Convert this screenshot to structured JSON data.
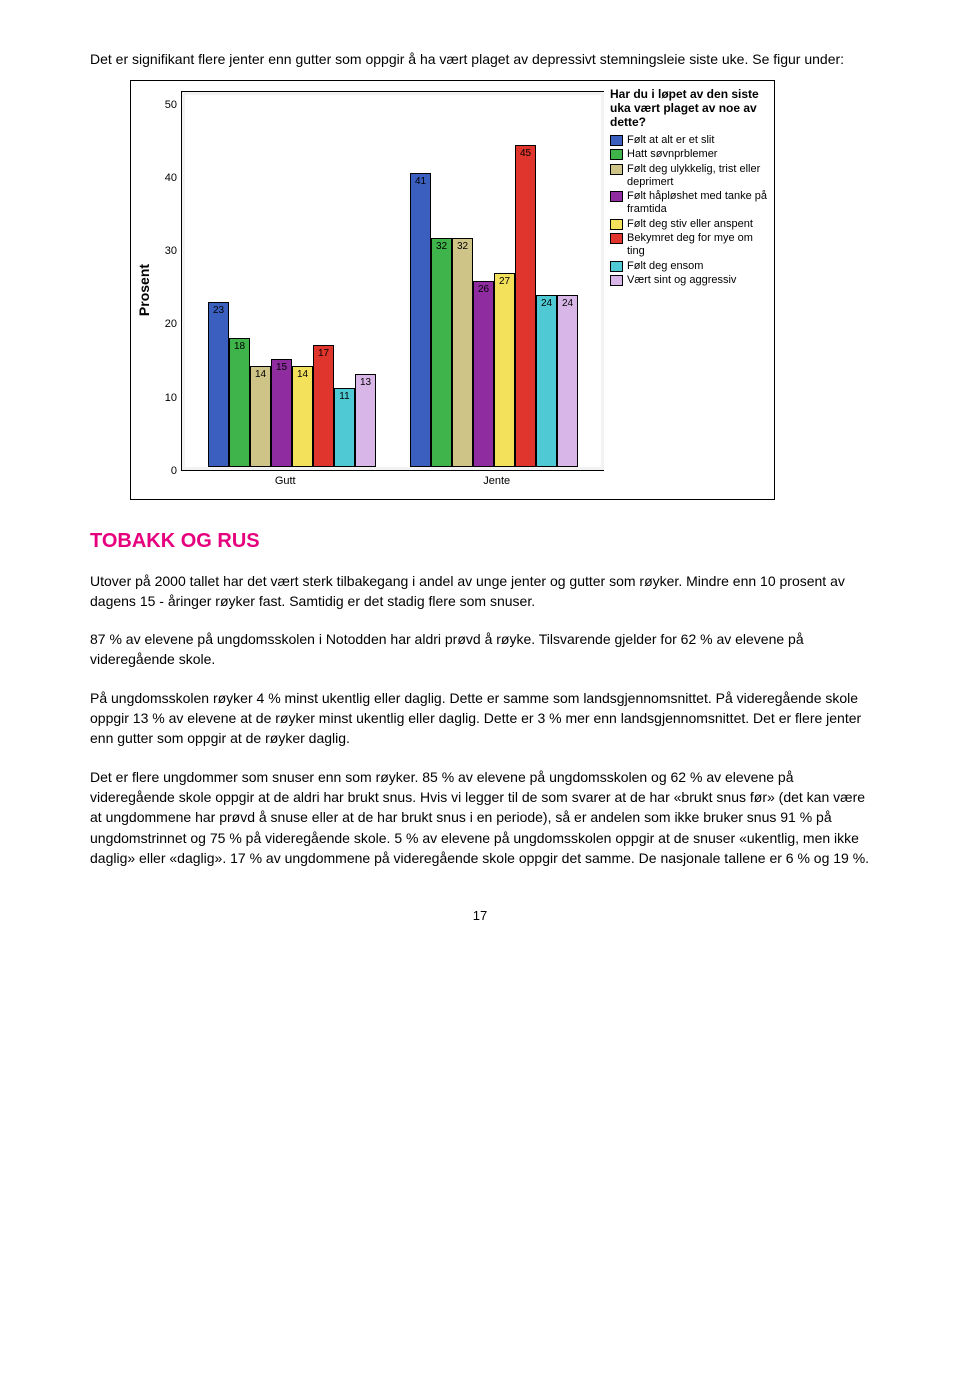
{
  "intro": "Det er signifikant flere jenter enn gutter som oppgir å ha vært plaget av depressivt stemningsleie siste uke. Se figur under:",
  "chart": {
    "type": "bar",
    "y_axis_title": "Prosent",
    "ylim": [
      0,
      52
    ],
    "yticks": [
      0,
      10,
      20,
      30,
      40,
      50
    ],
    "background_outer": "#f2f2f2",
    "background_inner": "#ffffff",
    "bar_border": "#000000",
    "legend_title": "Har du i løpet av den siste uka vært plaget av noe av dette?",
    "series": [
      {
        "label": "Følt at alt er et slit",
        "color": "#3b5fbf"
      },
      {
        "label": "Hatt søvnprblemer",
        "color": "#3fb44a"
      },
      {
        "label": "Følt deg ulykkelig, trist eller deprimert",
        "color": "#cfc487"
      },
      {
        "label": "Følt håpløshet med tanke på framtida",
        "color": "#8e2ca0"
      },
      {
        "label": "Følt deg stiv eller anspent",
        "color": "#f3e05b"
      },
      {
        "label": "Bekymret deg for mye om ting",
        "color": "#e0352c"
      },
      {
        "label": "Følt deg ensom",
        "color": "#4fc9d4"
      },
      {
        "label": "Vært sint og aggressiv",
        "color": "#d9b6e8"
      }
    ],
    "groups": [
      {
        "label": "Gutt",
        "values": [
          23,
          18,
          14,
          15,
          14,
          17,
          11,
          13
        ]
      },
      {
        "label": "Jente",
        "values": [
          41,
          32,
          32,
          26,
          27,
          45,
          24,
          24
        ]
      }
    ]
  },
  "section_title": "TOBAKK OG RUS",
  "paragraphs": [
    "Utover på 2000 tallet har det vært sterk tilbakegang i andel av unge jenter og gutter som røyker. Mindre enn 10 prosent av dagens 15 - åringer røyker fast. Samtidig er det stadig flere som snuser.",
    "87 % av elevene på ungdomsskolen i Notodden har aldri prøvd å røyke. Tilsvarende gjelder for 62 % av elevene på videregående skole.",
    "På ungdomsskolen røyker 4 % minst ukentlig eller daglig. Dette er samme som landsgjennomsnittet. På videregående skole oppgir 13 % av elevene at de røyker minst ukentlig eller daglig. Dette er 3 % mer enn landsgjennomsnittet. Det er flere jenter enn gutter som oppgir at de røyker daglig.",
    "Det er flere ungdommer som snuser enn som røyker. 85 % av elevene på ungdomsskolen og 62 % av elevene på videregående skole oppgir at de aldri har brukt snus. Hvis vi legger til de som svarer at de har «brukt snus før» (det kan være at ungdommene har prøvd å snuse eller at de har brukt snus i en periode), så er andelen som ikke bruker snus 91 % på ungdomstrinnet og 75 % på videregående skole. 5 % av elevene på ungdomsskolen oppgir at de snuser «ukentlig, men ikke daglig» eller «daglig». 17 % av ungdommene på videregående skole oppgir det samme. De nasjonale tallene er 6 % og 19 %."
  ],
  "page_number": "17"
}
